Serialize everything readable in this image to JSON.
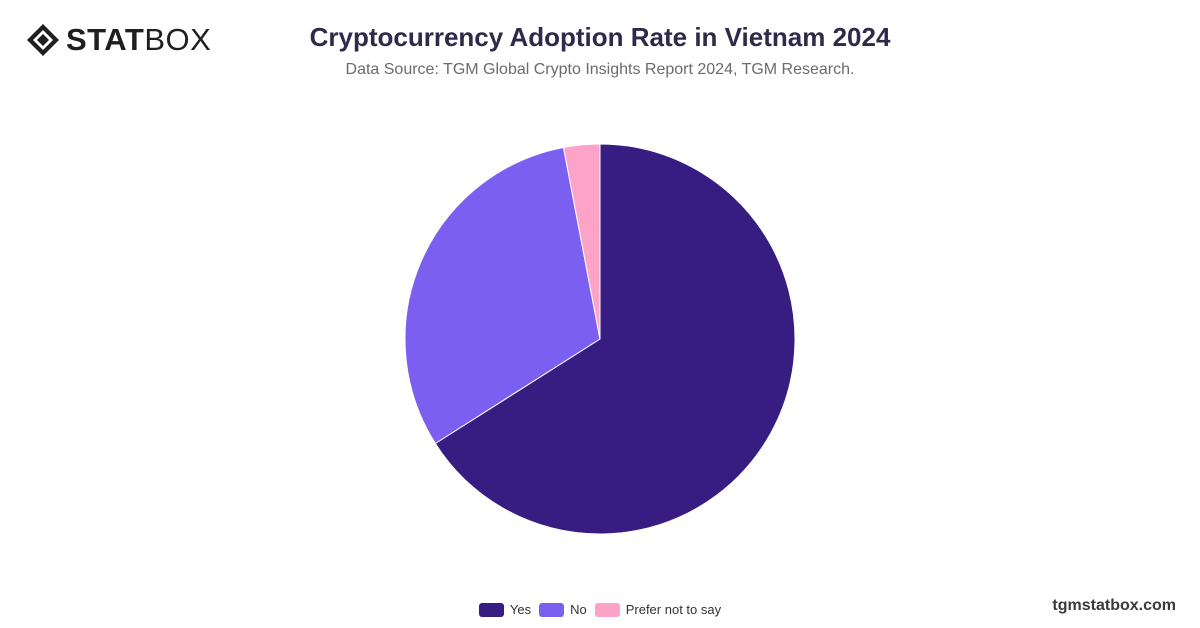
{
  "brand": {
    "logo_strong": "STAT",
    "logo_light": "BOX",
    "icon": "statbox-logo-icon"
  },
  "watermark": "tgmstatbox.com",
  "chart_data": {
    "type": "pie",
    "title": "Cryptocurrency Adoption Rate in Vietnam 2024",
    "subtitle": "Data Source: TGM Global Crypto Insights Report 2024, TGM Research.",
    "categories": [
      "Yes",
      "No",
      "Prefer not to say"
    ],
    "values": [
      66,
      31,
      3
    ],
    "colors": [
      "#371c82",
      "#7b5ff0",
      "#fda3c8"
    ],
    "legend_position": "bottom"
  }
}
